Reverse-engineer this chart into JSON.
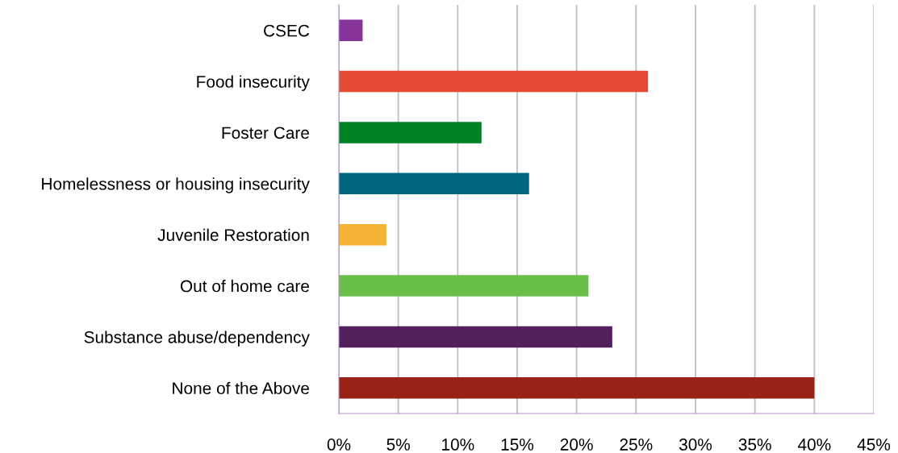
{
  "chart_data": {
    "type": "bar",
    "orientation": "horizontal",
    "categories": [
      "CSEC",
      "Food insecurity",
      "Foster Care",
      "Homelessness or housing insecurity",
      "Juvenile Restoration",
      "Out of home care",
      "Substance abuse/dependency",
      "None of the Above"
    ],
    "values": [
      2,
      26,
      12,
      16,
      4,
      21,
      23,
      40
    ],
    "colors": [
      "#87349a",
      "#e54c38",
      "#008323",
      "#006680",
      "#f4b335",
      "#6abf4b",
      "#51205d",
      "#982216"
    ],
    "xlim": [
      0,
      45
    ],
    "xticks": [
      {
        "value": 0,
        "label": "0%"
      },
      {
        "value": 5,
        "label": "5%"
      },
      {
        "value": 10,
        "label": "10%"
      },
      {
        "value": 15,
        "label": "15%"
      },
      {
        "value": 20,
        "label": "20%"
      },
      {
        "value": 25,
        "label": "25%"
      },
      {
        "value": 30,
        "label": "30%"
      },
      {
        "value": 35,
        "label": "35%"
      },
      {
        "value": 40,
        "label": "40%"
      },
      {
        "value": 45,
        "label": "45%"
      }
    ],
    "grid": "x",
    "legend": false
  }
}
